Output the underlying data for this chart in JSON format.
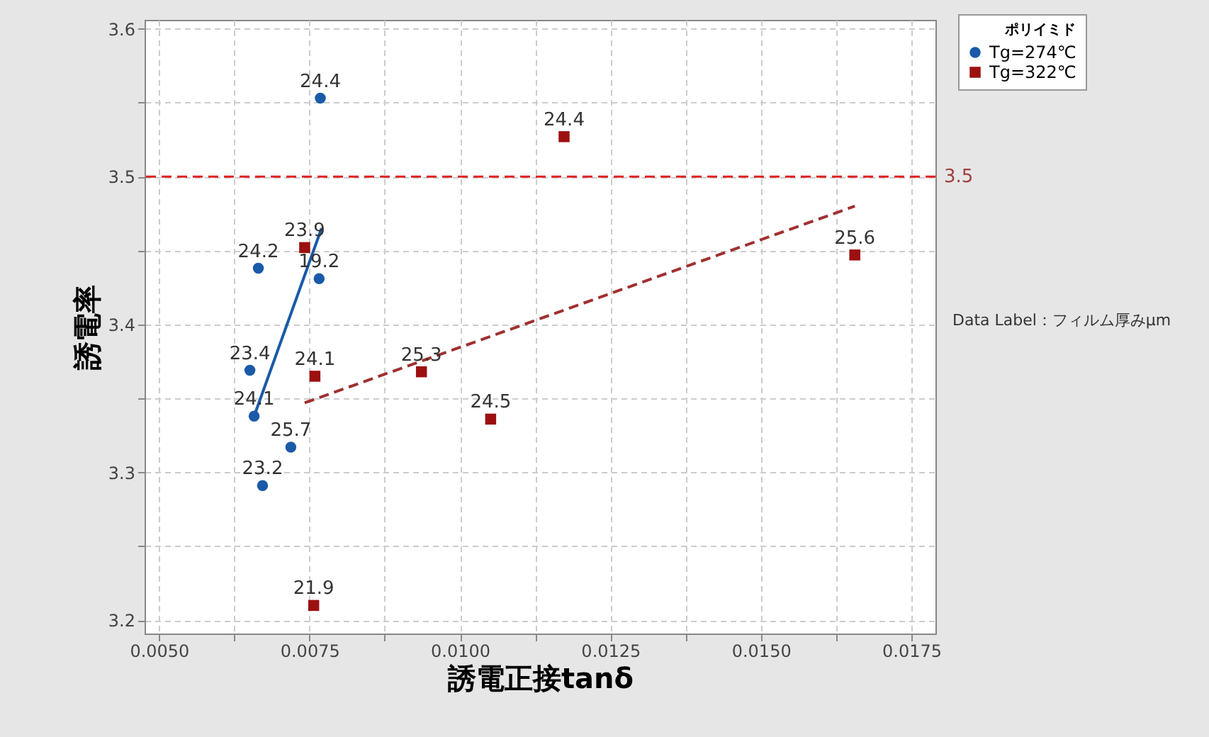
{
  "chart_data": {
    "type": "scatter",
    "xlabel": "誘電正接tanδ",
    "ylabel": "誘電率",
    "legend_title": "ポリイミド",
    "legend": "top right",
    "grid": true,
    "xlim": [
      0.00476,
      0.0179
    ],
    "ylim": [
      3.191,
      3.606
    ],
    "xticks": [
      {
        "value": 0.005,
        "label": "0.0050"
      },
      {
        "value": 0.00625,
        "label": null
      },
      {
        "value": 0.0075,
        "label": "0.0075"
      },
      {
        "value": 0.00875,
        "label": null
      },
      {
        "value": 0.01,
        "label": "0.0100"
      },
      {
        "value": 0.01125,
        "label": null
      },
      {
        "value": 0.0125,
        "label": "0.0125"
      },
      {
        "value": 0.01375,
        "label": null
      },
      {
        "value": 0.015,
        "label": "0.0150"
      },
      {
        "value": 0.01625,
        "label": null
      },
      {
        "value": 0.0175,
        "label": "0.0175"
      }
    ],
    "yticks": [
      3.2,
      {
        "value": 3.25,
        "label": null
      },
      3.3,
      {
        "value": 3.35,
        "label": null
      },
      3.4,
      {
        "value": 3.45,
        "label": null
      },
      3.5,
      {
        "value": 3.55,
        "label": null
      },
      3.6
    ],
    "series": [
      {
        "name": "Tg=274℃",
        "marker": "circle",
        "color": "#1a5aa8",
        "x": [
          0.00768,
          0.00665,
          0.00766,
          0.00651,
          0.00658,
          0.00719,
          0.00672
        ],
        "values": [
          3.553,
          3.438,
          3.431,
          3.369,
          3.338,
          3.317,
          3.291
        ]
      },
      {
        "name": "Tg=322℃",
        "marker": "square",
        "color": "#9c1010",
        "x": [
          0.00742,
          0.00759,
          0.00757,
          0.00936,
          0.01173,
          0.01051,
          0.01656
        ],
        "values": [
          3.452,
          3.365,
          3.21,
          3.368,
          3.527,
          3.336,
          3.447
        ]
      },
      {
        "type": "line",
        "marker": "none",
        "line_style": "solid",
        "color": "#1a5aa8",
        "x": [
          0.00658,
          0.0077
        ],
        "values": [
          3.338,
          3.465
        ]
      },
      {
        "type": "line",
        "marker": "none",
        "line_style": "dashed",
        "color": "#a03030",
        "x": [
          0.00742,
          0.01656
        ],
        "values": [
          3.347,
          3.48
        ]
      }
    ],
    "ref_lines": [
      {
        "axis": "y",
        "value": 3.5,
        "label": "3.5",
        "color": "#e02020",
        "line_style": "dashed"
      }
    ],
    "annotations": [
      "Data Label：フィルム厚みμm",
      {
        "text": "24.4",
        "x": 0.00768,
        "y": 3.553
      },
      {
        "text": "24.2",
        "x": 0.00665,
        "y": 3.438
      },
      {
        "text": "19.2",
        "x": 0.00766,
        "y": 3.431
      },
      {
        "text": "23.4",
        "x": 0.00651,
        "y": 3.369
      },
      {
        "text": "24.1",
        "x": 0.00658,
        "y": 3.338
      },
      {
        "text": "25.7",
        "x": 0.00719,
        "y": 3.317
      },
      {
        "text": "23.2",
        "x": 0.00672,
        "y": 3.291
      },
      {
        "text": "23.9",
        "x": 0.00742,
        "y": 3.452
      },
      {
        "text": "24.1",
        "x": 0.00759,
        "y": 3.365
      },
      {
        "text": "21.9",
        "x": 0.00757,
        "y": 3.21
      },
      {
        "text": "25.3",
        "x": 0.00936,
        "y": 3.368
      },
      {
        "text": "24.4",
        "x": 0.01173,
        "y": 3.527
      },
      {
        "text": "24.5",
        "x": 0.01051,
        "y": 3.336
      },
      {
        "text": "25.6",
        "x": 0.01656,
        "y": 3.447
      }
    ]
  }
}
